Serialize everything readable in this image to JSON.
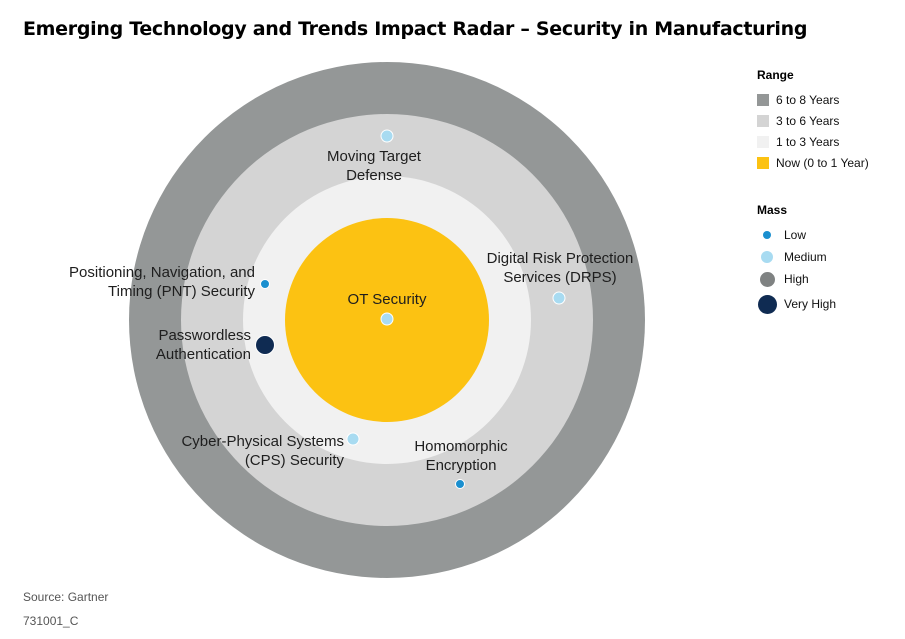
{
  "title": "Emerging Technology and Trends Impact Radar – Security in Manufacturing",
  "legend": {
    "range_title": "Range",
    "ranges": [
      {
        "label": "6 to 8 Years",
        "color": "#949797"
      },
      {
        "label": "3 to 6 Years",
        "color": "#d4d4d4"
      },
      {
        "label": "1 to 3 Years",
        "color": "#f1f1f1"
      },
      {
        "label": "Now (0 to 1 Year)",
        "color": "#fcc212"
      }
    ],
    "mass_title": "Mass",
    "masses": [
      {
        "label": "Low",
        "color": "#1a8fcf"
      },
      {
        "label": "Medium",
        "color": "#a8dbf1"
      },
      {
        "label": "High",
        "color": "#7f8282"
      },
      {
        "label": "Very High",
        "color": "#0f2b52"
      }
    ]
  },
  "technologies": [
    {
      "name": "OT Security",
      "lines": [
        "OT Security"
      ],
      "range": "Now (0 to 1 Year)",
      "mass": "Medium"
    },
    {
      "name": "Moving Target Defense",
      "lines": [
        "Moving Target",
        "Defense"
      ],
      "range": "3 to 6 Years",
      "mass": "Medium"
    },
    {
      "name": "Digital Risk Protection Services (DRPS)",
      "lines": [
        "Digital Risk Protection",
        "Services (DRPS)"
      ],
      "range": "3 to 6 Years",
      "mass": "Medium"
    },
    {
      "name": "Positioning, Navigation, and Timing (PNT) Security",
      "lines": [
        "Positioning, Navigation, and",
        "Timing (PNT) Security"
      ],
      "range": "1 to 3 Years",
      "mass": "Low"
    },
    {
      "name": "Passwordless Authentication",
      "lines": [
        "Passwordless",
        "Authentication"
      ],
      "range": "1 to 3 Years",
      "mass": "Very High"
    },
    {
      "name": "Cyber-Physical Systems (CPS) Security",
      "lines": [
        "Cyber-Physical Systems",
        "(CPS) Security"
      ],
      "range": "1 to 3 Years",
      "mass": "Medium"
    },
    {
      "name": "Homomorphic Encryption",
      "lines": [
        "Homomorphic",
        "Encryption"
      ],
      "range": "3 to 6 Years",
      "mass": "Low"
    }
  ],
  "source": "Source: Gartner",
  "doc_id": "731001_C"
}
